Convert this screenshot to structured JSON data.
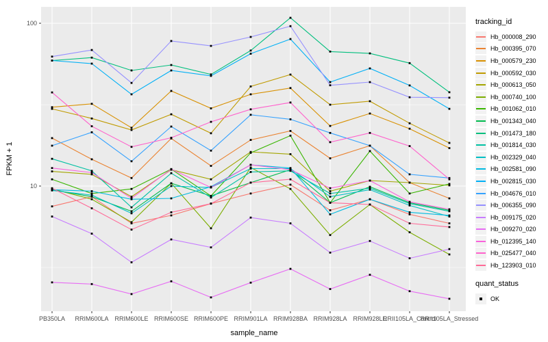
{
  "figure": {
    "background": "#FFFFFF",
    "panel_background": "#EBEBEB",
    "grid_color": "#FFFFFF",
    "tick_label_color": "#4D4D4D",
    "axis_title_color": "#000000",
    "marker_color": "#000000"
  },
  "chart_data": {
    "type": "line",
    "title": "",
    "xlabel": "sample_name",
    "ylabel": "FPKM + 1",
    "y_scale": "log10",
    "y_tick_labels": [
      "100",
      "10"
    ],
    "y_ticks": [
      100,
      10
    ],
    "y_minor_gridlines": [
      31.6,
      3.16
    ],
    "ylim": [
      1.7,
      126
    ],
    "grid": true,
    "legend_position": "right",
    "legend_title": "tracking_id",
    "quant_legend_title": "quant_status",
    "quant_legend_ok_label": "OK",
    "quant_marker": "black-square",
    "categories": [
      "PB350LA",
      "RRIM600LA",
      "RRIM600LE",
      "RRIM600SE",
      "RRIM600PE",
      "RRIM901LA",
      "RRIM928BA",
      "RRIM928LA",
      "RRIM928LE",
      "RRII105LA_Control",
      "RRII105LA_Stressed"
    ],
    "series": [
      {
        "name": "Hb_000008_290",
        "color": "#F8766D",
        "values": [
          7.5,
          8.6,
          5.9,
          6.6,
          7.8,
          9.0,
          10.2,
          7.1,
          8.3,
          6.7,
          5.9
        ]
      },
      {
        "name": "Hb_000395_070",
        "color": "#EA8331",
        "values": [
          19.7,
          14.6,
          11.2,
          19.6,
          13.3,
          19.2,
          21.8,
          14.8,
          17.7,
          10.5,
          8.4
        ]
      },
      {
        "name": "Hb_000579_230",
        "color": "#D89000",
        "values": [
          30.5,
          32.0,
          22.8,
          38.4,
          30.0,
          36.6,
          40.0,
          23.4,
          27.9,
          22.5,
          17.1
        ]
      },
      {
        "name": "Hb_000592_030",
        "color": "#C09B00",
        "values": [
          29.8,
          26.0,
          22.1,
          27.6,
          21.1,
          40.9,
          48.4,
          31.6,
          33.2,
          24.3,
          18.4
        ]
      },
      {
        "name": "Hb_000613_050",
        "color": "#A3A500",
        "values": [
          12.3,
          11.8,
          8.6,
          12.6,
          11.0,
          16.2,
          15.7,
          9.3,
          10.8,
          10.5,
          10.1
        ]
      },
      {
        "name": "Hb_000740_100",
        "color": "#7CAE00",
        "values": [
          9.6,
          8.3,
          6.0,
          10.4,
          5.5,
          13.0,
          9.6,
          5.0,
          7.7,
          5.2,
          3.8
        ]
      },
      {
        "name": "Hb_001062_010",
        "color": "#39B600",
        "values": [
          11.0,
          9.0,
          9.6,
          12.7,
          8.7,
          16.0,
          20.4,
          7.9,
          16.4,
          9.0,
          10.3
        ]
      },
      {
        "name": "Hb_001343_040",
        "color": "#00BB4E",
        "values": [
          9.5,
          8.6,
          7.0,
          10.4,
          8.7,
          10.5,
          12.6,
          7.9,
          9.9,
          7.9,
          7.1
        ]
      },
      {
        "name": "Hb_001473_180",
        "color": "#00BF7D",
        "values": [
          59.0,
          61.5,
          51.3,
          55.4,
          48.5,
          68.0,
          108.0,
          67.0,
          65.3,
          56.9,
          37.7
        ]
      },
      {
        "name": "Hb_001814_030",
        "color": "#00C1A3",
        "values": [
          14.7,
          12.4,
          7.4,
          12.0,
          8.5,
          12.2,
          12.4,
          9.0,
          9.7,
          7.8,
          7.0
        ]
      },
      {
        "name": "Hb_002329_040",
        "color": "#00BFC4",
        "values": [
          9.4,
          8.8,
          6.8,
          10.0,
          9.8,
          12.8,
          12.8,
          8.6,
          9.5,
          7.6,
          6.5
        ]
      },
      {
        "name": "Hb_002581_090",
        "color": "#00BAE0",
        "values": [
          9.5,
          9.3,
          8.3,
          8.4,
          9.9,
          13.5,
          12.9,
          6.7,
          8.3,
          6.9,
          6.6
        ]
      },
      {
        "name": "Hb_002815_030",
        "color": "#00B0F6",
        "values": [
          59.0,
          56.5,
          36.6,
          51.3,
          47.5,
          65.0,
          80.0,
          43.5,
          52.8,
          41.5,
          29.8
        ]
      },
      {
        "name": "Hb_004676_010",
        "color": "#35A2FF",
        "values": [
          17.7,
          21.4,
          14.2,
          23.2,
          16.5,
          27.4,
          25.7,
          21.2,
          17.7,
          11.8,
          11.2
        ]
      },
      {
        "name": "Hb_006355_090",
        "color": "#9590FF",
        "values": [
          62.4,
          68.5,
          43.0,
          77.8,
          72.6,
          82.4,
          96.0,
          41.6,
          43.5,
          35.1,
          34.9
        ]
      },
      {
        "name": "Hb_009175_020",
        "color": "#C77CFF",
        "values": [
          6.5,
          5.1,
          3.4,
          4.7,
          4.2,
          6.4,
          5.9,
          3.9,
          4.6,
          3.6,
          4.1
        ]
      },
      {
        "name": "Hb_009270_020",
        "color": "#E76BF3",
        "values": [
          2.56,
          2.5,
          2.17,
          2.6,
          2.07,
          2.55,
          3.1,
          2.33,
          2.85,
          2.26,
          2.03
        ]
      },
      {
        "name": "Hb_012395_140",
        "color": "#FA62DB",
        "values": [
          12.9,
          12.1,
          8.4,
          12.7,
          9.8,
          13.5,
          12.6,
          9.7,
          10.8,
          8.0,
          7.2
        ]
      },
      {
        "name": "Hb_025477_040",
        "color": "#FF61CC",
        "values": [
          37.6,
          23.3,
          17.4,
          19.8,
          24.8,
          29.6,
          32.6,
          18.6,
          21.2,
          17.6,
          11.0
        ]
      },
      {
        "name": "Hb_123903_010",
        "color": "#FF6A98",
        "values": [
          9.7,
          7.3,
          5.4,
          6.9,
          7.8,
          10.5,
          11.0,
          7.9,
          7.7,
          5.9,
          5.6
        ]
      }
    ]
  }
}
